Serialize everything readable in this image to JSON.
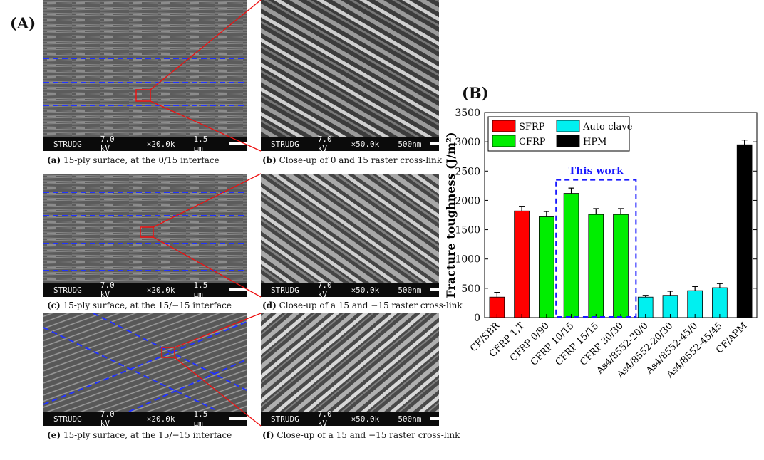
{
  "panel_labels": {
    "a": "(A)",
    "b": "(B)"
  },
  "sem": {
    "scalebar_left": {
      "name": "STRUDG",
      "kv": "7.0 kV",
      "mag": "×20.0k",
      "scale": "1.5 μm"
    },
    "scalebar_right": {
      "name": "STRUDG",
      "kv": "7.0 kV",
      "mag": "×50.0k",
      "scale": "500nm"
    }
  },
  "captions": [
    {
      "tag": "(a)",
      "text": " 15-ply surface, at the 0/15 interface"
    },
    {
      "tag": "(b)",
      "text": " Close-up of 0 and 15 raster cross-link"
    },
    {
      "tag": "(c)",
      "text": " 15-ply surface, at the 15/−15 interface"
    },
    {
      "tag": "(d)",
      "text": " Close-up of a 15 and −15 raster cross-link"
    },
    {
      "tag": "(e)",
      "text": " 15-ply surface, at the 15/−15 interface"
    },
    {
      "tag": "(f)",
      "text": " Close-up of a 15 and −15 raster cross-link"
    }
  ],
  "colors": {
    "sfrp": "#ff0000",
    "cfrp": "#00ee00",
    "autoclave": "#00f0f0",
    "hpm": "#000000",
    "annotation": "#1a1aff",
    "zoom_line": "#ee1111"
  },
  "chart_data": {
    "type": "bar",
    "title": "",
    "xlabel": "",
    "ylabel": "Fracture toughness (J/m²)",
    "ylim": [
      0,
      3500
    ],
    "yticks": [
      "0",
      "500",
      "1000",
      "1500",
      "2000",
      "2500",
      "3000",
      "3500"
    ],
    "categories": [
      "CF/SBR",
      "CFRP 1,T",
      "CFRP 0/90",
      "CFRP 10/15",
      "CFRP 15/15",
      "CFRP 30/30",
      "As4/8552-20/0",
      "As4/8552-20/30",
      "As4/8552-45/0",
      "As4/8552-45/45",
      "CF/APM"
    ],
    "values": [
      350,
      1820,
      1720,
      2120,
      1760,
      1760,
      350,
      380,
      460,
      510,
      2950
    ],
    "errors": [
      80,
      80,
      90,
      90,
      100,
      100,
      30,
      70,
      70,
      70,
      80
    ],
    "groups": [
      "SFRP",
      "SFRP",
      "CFRP",
      "CFRP",
      "CFRP",
      "CFRP",
      "Auto-clave",
      "Auto-clave",
      "Auto-clave",
      "Auto-clave",
      "HPM"
    ],
    "legend": [
      "SFRP",
      "Auto-clave",
      "CFRP",
      "HPM"
    ],
    "legend_position": "top-left",
    "annotation": "This work",
    "grid": false
  }
}
